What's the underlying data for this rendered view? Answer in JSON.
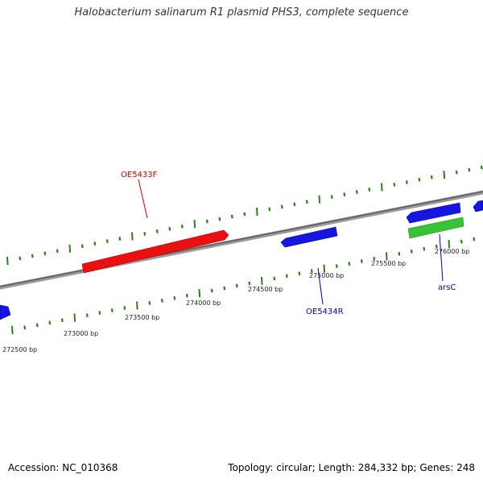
{
  "title": "Halobacterium salinarum R1 plasmid PHS3, complete sequence",
  "footer": {
    "accession": "Accession: NC_010368",
    "summary": "Topology: circular; Length: 284,332 bp; Genes: 248"
  },
  "colors": {
    "forward_gene": "#e81010",
    "reverse_gene": "#1616e0",
    "rna_gene": "#38c238",
    "backbone": "#7a7a7a",
    "tick": "#2e7d1e",
    "forward_label": "#cc0000",
    "reverse_label": "#0000cc"
  },
  "scale_labels": [
    "272500 bp",
    "273000 bp",
    "273500 bp",
    "274000 bp",
    "274500 bp",
    "275000 bp",
    "275500 bp",
    "276000 bp"
  ],
  "gene_labels": [
    {
      "key": "oe5433f",
      "text": "OE5433F",
      "strand": "forward"
    },
    {
      "key": "oe5434r",
      "text": "OE5434R",
      "strand": "reverse"
    },
    {
      "key": "arsc",
      "text": "arsC",
      "strand": "reverse"
    }
  ]
}
